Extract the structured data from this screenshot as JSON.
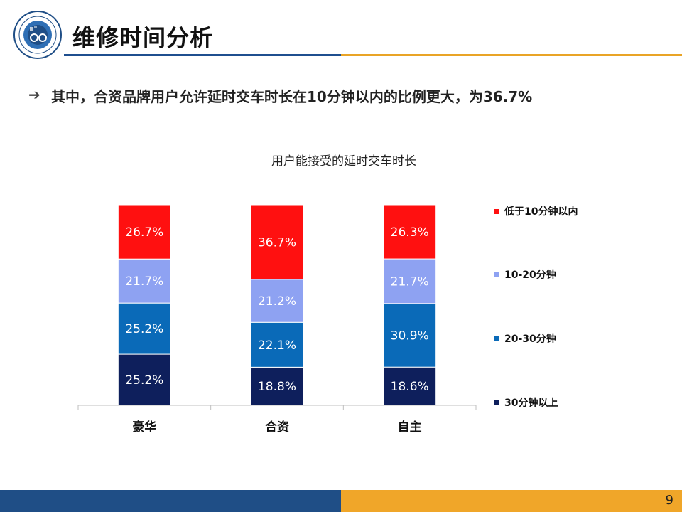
{
  "header": {
    "title": "维修时间分析",
    "bullet": "其中，合资品牌用户允许延时交车时长在10分钟以内的比例更大，为36.7%"
  },
  "colors": {
    "brand_blue": "#1f4e86",
    "brand_orange": "#f0a629"
  },
  "chart_data": {
    "type": "bar",
    "stacked": true,
    "percent": true,
    "title": "用户能接受的延时交车时长",
    "categories": [
      "豪华",
      "合资",
      "自主"
    ],
    "series": [
      {
        "name": "30分钟以上",
        "values": [
          25.2,
          18.8,
          18.6
        ],
        "labels": [
          "25.2%",
          "18.8%",
          "18.6%"
        ],
        "color": "#0e1f5c"
      },
      {
        "name": "20-30分钟",
        "values": [
          25.2,
          22.1,
          30.9
        ],
        "labels": [
          "25.2%",
          "22.1%",
          "30.9%"
        ],
        "color": "#0a6ab8"
      },
      {
        "name": "10-20分钟",
        "values": [
          21.7,
          21.2,
          21.7
        ],
        "labels": [
          "21.7%",
          "21.2%",
          "21.7%"
        ],
        "color": "#8ea2f2"
      },
      {
        "name": "低于10分钟以内",
        "values": [
          26.7,
          36.7,
          26.3
        ],
        "labels": [
          "26.7%",
          "36.7%",
          "26.3%"
        ],
        "color": "#ff1010"
      }
    ],
    "legend": "right",
    "grid": false
  },
  "footer": {
    "page_number": "9"
  }
}
